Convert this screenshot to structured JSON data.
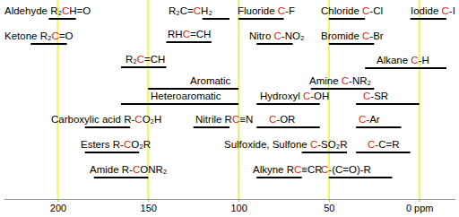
{
  "chart_data": {
    "type": "range",
    "orientation": "horizontal",
    "color": "#000000",
    "grid": true,
    "xlim": [
      230,
      -20
    ],
    "xticks": [
      200,
      150,
      100,
      50,
      {
        "value": 0,
        "label": "0 ppm"
      }
    ],
    "ranges": [
      {
        "label": [
          {
            "text": "Aldehyde R₂"
          },
          {
            "text": "C",
            "color": "#e41a1c"
          },
          {
            "text": "H=O"
          }
        ],
        "values": [
          205,
          190
        ]
      },
      {
        "label": [
          {
            "text": "Ketone R₂"
          },
          {
            "text": "C",
            "color": "#e41a1c"
          },
          {
            "text": "=O"
          }
        ],
        "values": [
          215,
          195
        ]
      },
      {
        "label": [
          {
            "text": "R₂C="
          },
          {
            "text": "C",
            "color": "#e41a1c"
          },
          {
            "text": "H₂"
          }
        ],
        "values": [
          120,
          105
        ]
      },
      {
        "label": [
          {
            "text": "RH"
          },
          {
            "text": "C",
            "color": "#e41a1c"
          },
          {
            "text": "=CH"
          }
        ],
        "values": [
          140,
          115
        ]
      },
      {
        "label": [
          {
            "text": "R₂"
          },
          {
            "text": "C",
            "color": "#e41a1c"
          },
          {
            "text": "=CH"
          }
        ],
        "values": [
          165,
          140
        ]
      },
      {
        "label": [
          {
            "text": "Fluoride "
          },
          {
            "text": "C",
            "color": "#e41a1c"
          },
          {
            "text": "-F"
          }
        ],
        "values": [
          100,
          75
        ]
      },
      {
        "label": [
          {
            "text": "Nitro "
          },
          {
            "text": "C",
            "color": "#e41a1c"
          },
          {
            "text": "-NO₂"
          }
        ],
        "values": [
          90,
          70
        ]
      },
      {
        "label": [
          {
            "text": "Chloride "
          },
          {
            "text": "C",
            "color": "#e41a1c"
          },
          {
            "text": "-Cl"
          }
        ],
        "values": [
          50,
          30
        ]
      },
      {
        "label": [
          {
            "text": "Bromide "
          },
          {
            "text": "C",
            "color": "#e41a1c"
          },
          {
            "text": "-Br"
          }
        ],
        "values": [
          50,
          25
        ]
      },
      {
        "label": [
          {
            "text": "Iodide "
          },
          {
            "text": "C",
            "color": "#e41a1c"
          },
          {
            "text": "-I"
          }
        ],
        "values": [
          5,
          -15
        ]
      },
      {
        "label": [
          {
            "text": "Alkane "
          },
          {
            "text": "C",
            "color": "#e41a1c"
          },
          {
            "text": "-H"
          }
        ],
        "values": [
          30,
          -15
        ]
      },
      {
        "label": [
          {
            "text": "Aromatic"
          }
        ],
        "values": [
          150,
          100
        ]
      },
      {
        "label": [
          {
            "text": "Amine "
          },
          {
            "text": "C",
            "color": "#e41a1c"
          },
          {
            "text": "-NR₂"
          }
        ],
        "values": [
          60,
          25
        ]
      },
      {
        "label": [
          {
            "text": "Heteroaromatic"
          }
        ],
        "values": [
          165,
          100
        ]
      },
      {
        "label": [
          {
            "text": "Hydroxyl "
          },
          {
            "text": "C",
            "color": "#e41a1c"
          },
          {
            "text": "-OH"
          }
        ],
        "values": [
          90,
          55
        ]
      },
      {
        "label": [
          {
            "text": "C",
            "color": "#e41a1c"
          },
          {
            "text": "-SR"
          }
        ],
        "values": [
          35,
          0
        ]
      },
      {
        "label": [
          {
            "text": "Carboxylic acid R-"
          },
          {
            "text": "C",
            "color": "#e41a1c"
          },
          {
            "text": "O₂H"
          }
        ],
        "values": [
          185,
          160
        ]
      },
      {
        "label": [
          {
            "text": "Nitrile R"
          },
          {
            "text": "C",
            "color": "#e41a1c"
          },
          {
            "text": "≡N"
          }
        ],
        "values": [
          125,
          105
        ]
      },
      {
        "label": [
          {
            "text": "C",
            "color": "#e41a1c"
          },
          {
            "text": "-OR"
          }
        ],
        "values": [
          90,
          55
        ]
      },
      {
        "label": [
          {
            "text": "C",
            "color": "#e41a1c"
          },
          {
            "text": "-Ar"
          }
        ],
        "values": [
          35,
          10
        ]
      },
      {
        "label": [
          {
            "text": "Esters R-"
          },
          {
            "text": "C",
            "color": "#e41a1c"
          },
          {
            "text": "O₂R"
          }
        ],
        "values": [
          185,
          155
        ]
      },
      {
        "label": [
          {
            "text": "Sulfoxide, Sulfone "
          },
          {
            "text": "C",
            "color": "#e41a1c"
          },
          {
            "text": "-SO₂R"
          }
        ],
        "values": [
          65,
          40
        ]
      },
      {
        "label": [
          {
            "text": "C",
            "color": "#e41a1c"
          },
          {
            "text": "-C=R"
          }
        ],
        "values": [
          35,
          5
        ]
      },
      {
        "label": [
          {
            "text": "Amide R-"
          },
          {
            "text": "C",
            "color": "#e41a1c"
          },
          {
            "text": "ONR₂"
          }
        ],
        "values": [
          180,
          150
        ]
      },
      {
        "label": [
          {
            "text": "Alkyne R"
          },
          {
            "text": "C",
            "color": "#e41a1c"
          },
          {
            "text": "≡CR"
          }
        ],
        "values": [
          90,
          65
        ]
      },
      {
        "label": [
          {
            "text": "C",
            "color": "#e41a1c"
          },
          {
            "text": "-(C=O)-R"
          }
        ],
        "values": [
          50,
          15
        ]
      }
    ]
  }
}
